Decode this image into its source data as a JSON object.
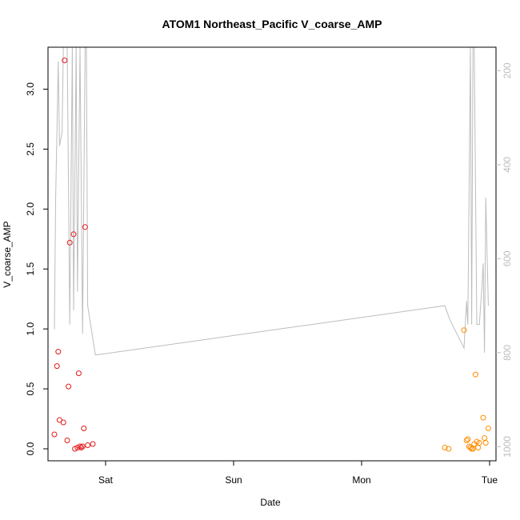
{
  "chart_data": {
    "type": "scatter",
    "title": "ATOM1 Northeast_Pacific V_coarse_AMP",
    "xlabel": "Date",
    "ylabel": "V_coarse_AMP",
    "x_ticks": [
      {
        "label": "Sat",
        "value": 1.0
      },
      {
        "label": "Sun",
        "value": 2.0
      },
      {
        "label": "Mon",
        "value": 3.0
      },
      {
        "label": "Tue",
        "value": 4.0
      }
    ],
    "xlim": [
      0.55,
      4.05
    ],
    "ylim": [
      -0.1,
      3.35
    ],
    "y_ticks": [
      0.0,
      0.5,
      1.0,
      1.5,
      2.0,
      2.5,
      3.0
    ],
    "y_ticks_text": [
      "0.0",
      "0.5",
      "1.0",
      "1.5",
      "2.0",
      "2.5",
      "3.0"
    ],
    "y2lim": [
      1030,
      150
    ],
    "y2_ticks": [
      200,
      400,
      600,
      800,
      1000
    ],
    "y2_ticks_text": [
      "200",
      "400",
      "600",
      "800",
      "1000"
    ],
    "grid": false,
    "colors": {
      "series_1": "#e31a1c",
      "series_2": "#ff8c00",
      "profile_line": "#bdbdbd",
      "axis": "#000000",
      "right_axis": "#bdbdbd"
    },
    "series": [
      {
        "marker": "open-circle",
        "color": "#e31a1c",
        "points": [
          [
            0.6,
            0.12
          ],
          [
            0.62,
            0.69
          ],
          [
            0.63,
            0.81
          ],
          [
            0.64,
            0.24
          ],
          [
            0.67,
            0.22
          ],
          [
            0.68,
            3.24
          ],
          [
            0.7,
            0.07
          ],
          [
            0.71,
            0.52
          ],
          [
            0.72,
            1.72
          ],
          [
            0.75,
            1.79
          ],
          [
            0.76,
            0.0
          ],
          [
            0.78,
            0.01
          ],
          [
            0.79,
            0.63
          ],
          [
            0.8,
            0.02
          ],
          [
            0.81,
            0.01
          ],
          [
            0.82,
            0.02
          ],
          [
            0.83,
            0.17
          ],
          [
            0.84,
            1.85
          ],
          [
            0.86,
            0.03
          ],
          [
            0.9,
            0.04
          ]
        ]
      },
      {
        "marker": "open-circle",
        "color": "#ff8c00",
        "points": [
          [
            3.65,
            0.01
          ],
          [
            3.68,
            0.0
          ],
          [
            3.8,
            0.99
          ],
          [
            3.82,
            0.07
          ],
          [
            3.83,
            0.08
          ],
          [
            3.84,
            0.02
          ],
          [
            3.85,
            0.01
          ],
          [
            3.86,
            0.0
          ],
          [
            3.87,
            0.0
          ],
          [
            3.88,
            0.04
          ],
          [
            3.89,
            0.62
          ],
          [
            3.9,
            0.06
          ],
          [
            3.91,
            0.01
          ],
          [
            3.92,
            0.05
          ],
          [
            3.95,
            0.26
          ],
          [
            3.96,
            0.09
          ],
          [
            3.97,
            0.05
          ],
          [
            3.99,
            0.17
          ]
        ]
      }
    ],
    "depth_profile": {
      "axis": "right",
      "color": "#bdbdbd",
      "points": [
        [
          0.6,
          750
        ],
        [
          0.61,
          470
        ],
        [
          0.63,
          180
        ],
        [
          0.64,
          360
        ],
        [
          0.66,
          330
        ],
        [
          0.67,
          150
        ],
        [
          0.7,
          150
        ],
        [
          0.72,
          740
        ],
        [
          0.74,
          150
        ],
        [
          0.75,
          710
        ],
        [
          0.77,
          150
        ],
        [
          0.78,
          670
        ],
        [
          0.8,
          150
        ],
        [
          0.82,
          760
        ],
        [
          0.84,
          150
        ],
        [
          0.85,
          150
        ],
        [
          0.86,
          700
        ],
        [
          0.92,
          805
        ],
        [
          3.65,
          700
        ],
        [
          3.69,
          730
        ],
        [
          3.8,
          790
        ],
        [
          3.82,
          690
        ],
        [
          3.83,
          740
        ],
        [
          3.85,
          150
        ],
        [
          3.86,
          740
        ],
        [
          3.87,
          150
        ],
        [
          3.88,
          150
        ],
        [
          3.9,
          740
        ],
        [
          3.92,
          740
        ],
        [
          3.94,
          660
        ],
        [
          3.95,
          610
        ],
        [
          3.96,
          800
        ],
        [
          3.97,
          470
        ],
        [
          3.99,
          700
        ]
      ]
    }
  }
}
